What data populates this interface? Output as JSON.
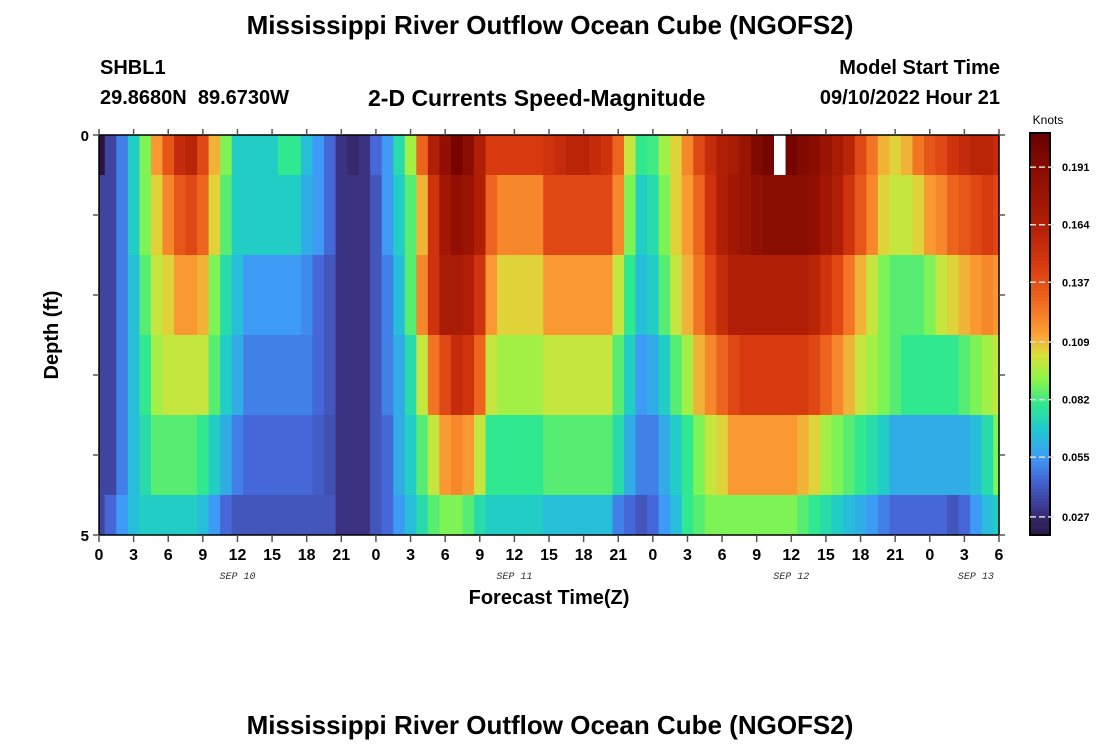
{
  "header": {
    "title": "Mississippi River Outflow Ocean Cube (NGOFS2)",
    "station": "SHBL1",
    "coords": "29.8680N  89.6730W",
    "subtitle": "2-D Currents Speed-Magnitude",
    "start_label": "Model Start Time",
    "start_value": "09/10/2022 Hour 21",
    "repeat_title": "Mississippi River Outflow Ocean Cube (NGOFS2)"
  },
  "chart_data": {
    "type": "heatmap",
    "title": "2-D Currents Speed-Magnitude",
    "xlabel": "Forecast Time(Z)",
    "ylabel": "Depth (ft)",
    "x_hours_range": [
      0,
      78
    ],
    "x_tick_labels": [
      "0",
      "3",
      "6",
      "9",
      "12",
      "15",
      "18",
      "21",
      "0",
      "3",
      "6",
      "9",
      "12",
      "15",
      "18",
      "21",
      "0",
      "3",
      "6",
      "9",
      "12",
      "15",
      "18",
      "21",
      "0",
      "3",
      "6"
    ],
    "date_labels": [
      {
        "text": "SEP 10",
        "hour": 12
      },
      {
        "text": "SEP 11",
        "hour": 36
      },
      {
        "text": "SEP 12",
        "hour": 60
      },
      {
        "text": "SEP 13",
        "hour": 76
      }
    ],
    "ylim": [
      0,
      5
    ],
    "y_tick_labels": [
      "0",
      "5"
    ],
    "depths": [
      0,
      1,
      2,
      3,
      4,
      5
    ],
    "colorbar": {
      "label": "Knots",
      "range": [
        0.0185,
        0.207
      ],
      "ticks": [
        "0.191",
        "0.164",
        "0.137",
        "0.109",
        "0.082",
        "0.055",
        "0.027"
      ],
      "tick_values": [
        0.191,
        0.164,
        0.137,
        0.109,
        0.082,
        0.055,
        0.027
      ],
      "stops": [
        [
          0.015,
          "#2a1440"
        ],
        [
          0.025,
          "#33235e"
        ],
        [
          0.032,
          "#3e3a90"
        ],
        [
          0.045,
          "#4567d8"
        ],
        [
          0.055,
          "#3d9bf5"
        ],
        [
          0.068,
          "#1fc8d0"
        ],
        [
          0.08,
          "#30e890"
        ],
        [
          0.092,
          "#8ef54a"
        ],
        [
          0.103,
          "#d8e03a"
        ],
        [
          0.113,
          "#fca035"
        ],
        [
          0.128,
          "#f06a20"
        ],
        [
          0.145,
          "#d83a10"
        ],
        [
          0.165,
          "#b01e05"
        ],
        [
          0.19,
          "#8a0d02"
        ],
        [
          0.207,
          "#680000"
        ]
      ]
    },
    "values": [
      [
        0.015,
        0.035,
        0.05,
        0.07,
        0.09,
        0.115,
        0.135,
        0.155,
        0.16,
        0.14,
        0.11,
        0.09,
        0.07,
        0.07,
        0.07,
        0.07,
        0.08,
        0.08,
        0.065,
        0.055,
        0.045,
        0.03,
        0.027,
        0.03,
        0.045,
        0.055,
        0.075,
        0.095,
        0.13,
        0.165,
        0.185,
        0.2,
        0.19,
        0.165,
        0.145,
        0.145,
        0.145,
        0.145,
        0.145,
        0.15,
        0.155,
        0.16,
        0.16,
        0.155,
        0.15,
        0.13,
        0.1,
        0.08,
        0.082,
        0.095,
        0.105,
        0.12,
        0.14,
        0.155,
        0.165,
        0.17,
        0.18,
        0.195,
        0.2,
        null,
        0.2,
        0.195,
        0.19,
        0.18,
        0.17,
        0.16,
        0.14,
        0.125,
        0.11,
        0.105,
        0.11,
        0.125,
        0.135,
        0.14,
        0.15,
        0.155,
        0.16,
        0.16,
        0.155
      ],
      [
        0.035,
        0.035,
        0.05,
        0.07,
        0.09,
        0.105,
        0.12,
        0.135,
        0.14,
        0.13,
        0.105,
        0.085,
        0.07,
        0.07,
        0.07,
        0.07,
        0.07,
        0.07,
        0.06,
        0.055,
        0.045,
        0.03,
        0.03,
        0.03,
        0.04,
        0.055,
        0.07,
        0.085,
        0.11,
        0.15,
        0.175,
        0.185,
        0.18,
        0.165,
        0.13,
        0.12,
        0.12,
        0.12,
        0.12,
        0.14,
        0.14,
        0.14,
        0.14,
        0.14,
        0.14,
        0.12,
        0.09,
        0.07,
        0.075,
        0.09,
        0.105,
        0.115,
        0.13,
        0.15,
        0.165,
        0.175,
        0.18,
        0.185,
        0.19,
        0.19,
        0.19,
        0.19,
        0.185,
        0.175,
        0.165,
        0.15,
        0.135,
        0.12,
        0.105,
        0.1,
        0.1,
        0.105,
        0.115,
        0.12,
        0.13,
        0.135,
        0.14,
        0.145,
        0.14
      ],
      [
        0.035,
        0.035,
        0.05,
        0.065,
        0.085,
        0.1,
        0.105,
        0.115,
        0.115,
        0.11,
        0.09,
        0.075,
        0.065,
        0.055,
        0.055,
        0.055,
        0.055,
        0.055,
        0.052,
        0.045,
        0.04,
        0.03,
        0.03,
        0.03,
        0.04,
        0.05,
        0.065,
        0.085,
        0.12,
        0.15,
        0.17,
        0.17,
        0.165,
        0.15,
        0.115,
        0.105,
        0.105,
        0.105,
        0.105,
        0.115,
        0.115,
        0.115,
        0.115,
        0.115,
        0.115,
        0.1,
        0.08,
        0.065,
        0.07,
        0.085,
        0.1,
        0.11,
        0.125,
        0.14,
        0.155,
        0.165,
        0.165,
        0.165,
        0.165,
        0.165,
        0.165,
        0.165,
        0.16,
        0.15,
        0.14,
        0.125,
        0.11,
        0.1,
        0.09,
        0.085,
        0.085,
        0.085,
        0.09,
        0.1,
        0.105,
        0.11,
        0.115,
        0.12,
        0.115
      ],
      [
        0.035,
        0.035,
        0.05,
        0.065,
        0.08,
        0.095,
        0.1,
        0.1,
        0.1,
        0.1,
        0.085,
        0.07,
        0.06,
        0.05,
        0.05,
        0.05,
        0.05,
        0.05,
        0.05,
        0.045,
        0.04,
        0.03,
        0.03,
        0.03,
        0.04,
        0.05,
        0.06,
        0.075,
        0.1,
        0.125,
        0.14,
        0.155,
        0.15,
        0.13,
        0.1,
        0.095,
        0.095,
        0.095,
        0.095,
        0.1,
        0.1,
        0.1,
        0.1,
        0.1,
        0.1,
        0.085,
        0.07,
        0.055,
        0.06,
        0.07,
        0.085,
        0.095,
        0.11,
        0.12,
        0.13,
        0.14,
        0.145,
        0.145,
        0.145,
        0.145,
        0.145,
        0.145,
        0.14,
        0.13,
        0.12,
        0.11,
        0.1,
        0.095,
        0.09,
        0.085,
        0.08,
        0.08,
        0.08,
        0.08,
        0.08,
        0.085,
        0.09,
        0.095,
        0.1
      ],
      [
        0.035,
        0.035,
        0.05,
        0.065,
        0.075,
        0.085,
        0.085,
        0.085,
        0.085,
        0.08,
        0.07,
        0.06,
        0.05,
        0.045,
        0.045,
        0.045,
        0.045,
        0.045,
        0.045,
        0.042,
        0.038,
        0.03,
        0.03,
        0.03,
        0.04,
        0.045,
        0.06,
        0.07,
        0.085,
        0.1,
        0.115,
        0.12,
        0.115,
        0.1,
        0.08,
        0.08,
        0.08,
        0.08,
        0.08,
        0.085,
        0.085,
        0.085,
        0.085,
        0.085,
        0.085,
        0.075,
        0.06,
        0.05,
        0.05,
        0.06,
        0.07,
        0.08,
        0.09,
        0.1,
        0.105,
        0.115,
        0.115,
        0.115,
        0.115,
        0.115,
        0.115,
        0.11,
        0.105,
        0.095,
        0.09,
        0.085,
        0.08,
        0.075,
        0.07,
        0.06,
        0.06,
        0.06,
        0.06,
        0.06,
        0.06,
        0.06,
        0.065,
        0.075,
        0.09
      ],
      [
        0.035,
        0.045,
        0.055,
        0.065,
        0.07,
        0.07,
        0.07,
        0.07,
        0.07,
        0.065,
        0.055,
        0.045,
        0.04,
        0.04,
        0.04,
        0.04,
        0.04,
        0.04,
        0.04,
        0.04,
        0.04,
        0.03,
        0.03,
        0.03,
        0.04,
        0.045,
        0.055,
        0.065,
        0.075,
        0.085,
        0.09,
        0.09,
        0.085,
        0.075,
        0.07,
        0.07,
        0.07,
        0.07,
        0.07,
        0.065,
        0.065,
        0.065,
        0.065,
        0.065,
        0.065,
        0.05,
        0.045,
        0.04,
        0.045,
        0.055,
        0.065,
        0.08,
        0.085,
        0.09,
        0.09,
        0.09,
        0.09,
        0.09,
        0.09,
        0.09,
        0.09,
        0.085,
        0.08,
        0.075,
        0.07,
        0.065,
        0.06,
        0.055,
        0.05,
        0.045,
        0.045,
        0.045,
        0.045,
        0.045,
        0.04,
        0.045,
        0.055,
        0.065,
        0.07
      ]
    ]
  }
}
